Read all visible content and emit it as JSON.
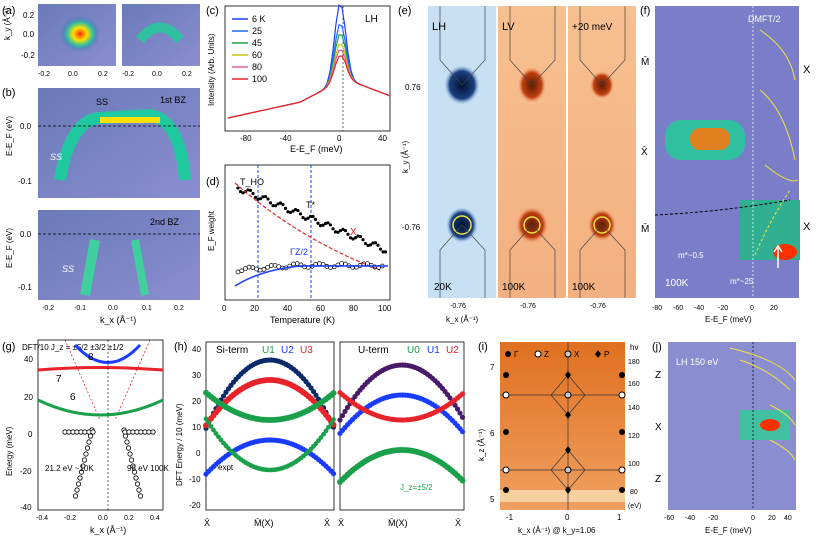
{
  "panels": {
    "a": {
      "label": "(a)",
      "ylabel": "k_y (Å⁻¹)",
      "yticks": [
        "0.2",
        "0.0",
        "-0.2"
      ],
      "xticks": [
        "-0.2",
        "0.0",
        "0.2"
      ]
    },
    "b": {
      "label": "(b)",
      "ylabel": "E-E_F (eV)",
      "yticks": [
        "0.0",
        "-0.1"
      ],
      "xticks": [
        "-0.2",
        "-0.1",
        "0.0",
        "0.1",
        "0.2"
      ],
      "xlabel": "k_x (Å⁻¹)",
      "top_label": "1st BZ",
      "bottom_label": "2nd BZ",
      "ss_label": "SS"
    },
    "c": {
      "label": "(c)",
      "title": "LH",
      "ylabel": "Intensity (Arb. Units)",
      "xlabel": "E-E_F (meV)",
      "xticks": [
        "-80",
        "-40",
        "0",
        "40"
      ],
      "legend": [
        "6 K",
        "25",
        "45",
        "60",
        "80",
        "100"
      ]
    },
    "d": {
      "label": "(d)",
      "ylabel": "E_F weight",
      "xlabel": "Temperature (K)",
      "xticks": [
        "0",
        "20",
        "40",
        "60",
        "80",
        "100"
      ],
      "ann_tho": "T_HO",
      "ann_tstar": "T*",
      "ann_x": "X",
      "ann_gz": "ΓZ/2"
    },
    "e": {
      "label": "(e)",
      "sub": [
        "LH",
        "LV",
        "+20 meV"
      ],
      "temps": [
        "20K",
        "100K",
        "100K"
      ],
      "ylabel": "k_y (Å⁻¹)",
      "yticks": [
        "0.76",
        "-0.76"
      ],
      "xtick": "-0.76",
      "xlabel": "k_x (Å⁻¹)"
    },
    "f": {
      "label": "(f)",
      "title": "DMFT/2",
      "left_labels": [
        "M̄",
        "X̄",
        "M̄"
      ],
      "right_labels": [
        "X",
        "X"
      ],
      "xlabel": "E-E_F (meV)",
      "xticks": [
        "-80",
        "-60",
        "-40",
        "-20",
        "0",
        "20"
      ],
      "temp": "100K",
      "m1": "m*~0.5",
      "m2": "m*~25"
    },
    "g": {
      "label": "(g)",
      "title": "DFT/10  J_z = ±5/2 ±3/2 ±1/2",
      "ylabel": "Energy (meV)",
      "xlabel": "k_x (Å⁻¹)",
      "yticks": [
        "40",
        "20",
        "0",
        "-20",
        "-40"
      ],
      "xticks": [
        "-0.4",
        "-0.2",
        "0.0",
        "0.2",
        "0.4"
      ],
      "curve_labels": [
        "8",
        "7",
        "6"
      ],
      "legend1": "21.2 eV ~10K",
      "legend2": "98 eV 100K"
    },
    "h": {
      "label": "(h)",
      "title_left": "Si-term",
      "title_right": "U-term",
      "ylabel": "DFT Energy / 10 (meV)",
      "yticks": [
        "40",
        "30",
        "20",
        "10",
        "0",
        "-10",
        "-20"
      ],
      "xticks_left": [
        "X̄",
        "M̄(X)",
        "X̄"
      ],
      "xticks_right": [
        "X̄",
        "M̄(X)",
        "X̄"
      ],
      "legend_left": [
        "U1",
        "U2",
        "U3"
      ],
      "legend_right": [
        "U0",
        "U1",
        "U2"
      ],
      "expt": "expt",
      "jz_label": "J_z=±5/2"
    },
    "i": {
      "label": "(i)",
      "ylabel": "k_z (Å⁻¹)",
      "xlabel": "k_x (Å⁻¹) @ k_y=1.06",
      "yticks": [
        "7",
        "6",
        "5"
      ],
      "xticks": [
        "-1",
        "0",
        "1"
      ],
      "legend": [
        "Γ",
        "Z",
        "X",
        "P"
      ],
      "hv_label": "hν",
      "hv_ticks": [
        "180",
        "160",
        "140",
        "120",
        "100",
        "80"
      ],
      "ev": "(eV)"
    },
    "j": {
      "label": "(j)",
      "title": "LH 150 eV",
      "left_labels": [
        "Z",
        "X",
        "Z"
      ],
      "xlabel": "E-E_F (meV)",
      "xticks": [
        "-60",
        "-40",
        "-20",
        "0",
        "20",
        "40"
      ]
    }
  },
  "colors": {
    "dark": "#1a0a3a",
    "blue": "#1a3cff",
    "red": "#e8232a",
    "green": "#1aa04b",
    "orange": "#f39020"
  }
}
